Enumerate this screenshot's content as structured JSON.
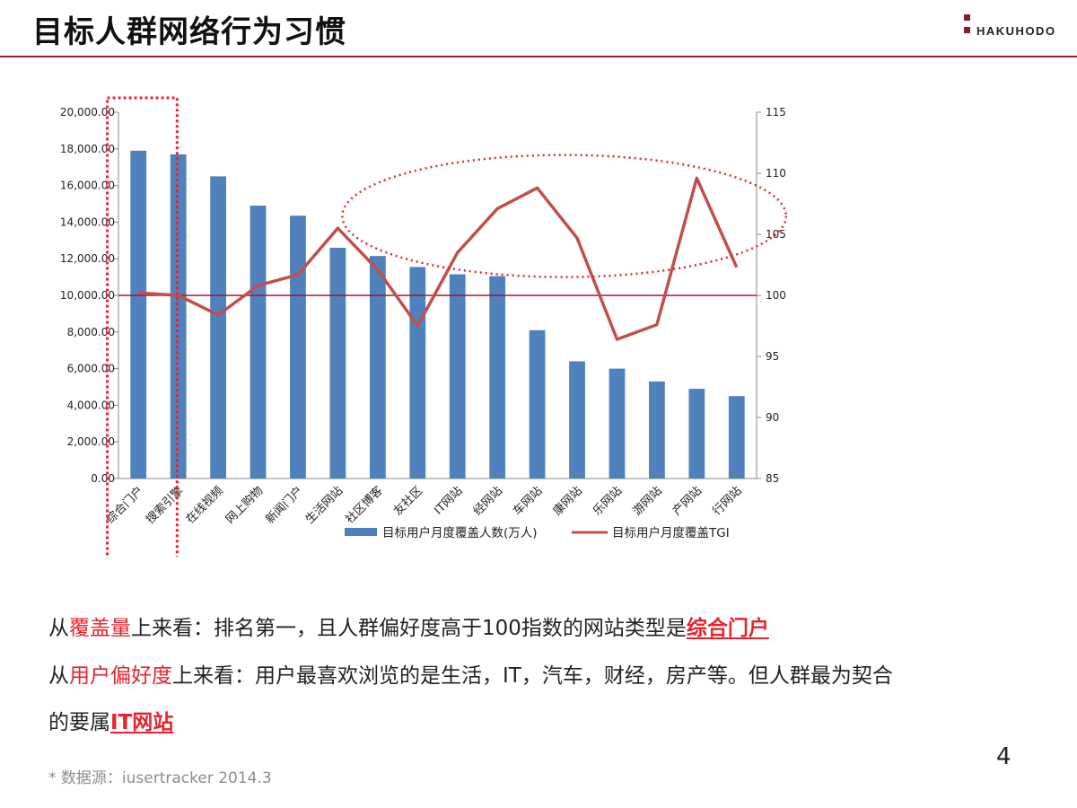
{
  "header": {
    "title": "目标人群网络行为习惯",
    "brand": "HAKUHODO"
  },
  "chart_data": {
    "type": "bar+line",
    "categories": [
      "综合门户",
      "搜索引擎",
      "在线视频",
      "网上购物",
      "新闻门户",
      "生活网站",
      "社区博客",
      "交友社区",
      "IT网站",
      "财经网站",
      "汽车网站",
      "健康网站",
      "娱乐网站",
      "房产网站",
      "房产网站",
      "旅行网站"
    ],
    "category_labels_visible": [
      "综合门户",
      "搜索引擎",
      "在线视频",
      "网上购物",
      "新闻门户",
      "生活网站",
      "社区博客",
      "友社区",
      "IT网站",
      "经网站",
      "车网站",
      "康网站",
      "乐网站",
      "游网站",
      "产网站",
      "行网站"
    ],
    "series": [
      {
        "name": "目标用户月度覆盖人数(万人)",
        "type": "bar",
        "axis": "left",
        "color": "#4f81bd",
        "values": [
          17900,
          17700,
          16500,
          14900,
          14350,
          12600,
          12150,
          11550,
          11150,
          11050,
          8100,
          6400,
          6000,
          5300,
          4900,
          4500
        ]
      },
      {
        "name": "目标用户月度覆盖TGI",
        "type": "line",
        "axis": "right",
        "color": "#c0504d",
        "values": [
          100.2,
          100.0,
          98.4,
          100.8,
          101.7,
          105.5,
          102.1,
          97.5,
          103.5,
          107.1,
          108.8,
          104.7,
          96.4,
          97.6,
          109.6,
          102.3
        ]
      }
    ],
    "y_left": {
      "min": 0,
      "max": 20000,
      "ticks": [
        "0.00",
        "2,000.00",
        "4,000.00",
        "6,000.00",
        "8,000.00",
        "10,000.00",
        "12,000.00",
        "14,000.00",
        "16,000.00",
        "18,000.00",
        "20,000.00"
      ]
    },
    "y_right": {
      "min": 85,
      "max": 115,
      "ticks": [
        "85",
        "90",
        "95",
        "100",
        "105",
        "110",
        "115"
      ]
    },
    "reference_line": {
      "axis": "right",
      "value": 100
    },
    "legend": "bottom"
  },
  "notes": {
    "line1": {
      "a": "从",
      "b": "覆盖量",
      "c": "上来看：排名第一，且人群偏好度高于100指数的网站类型是",
      "d": "综合门户"
    },
    "line2": {
      "a": "从",
      "b": "用户偏好度",
      "c": "上来看：用户最喜欢浏览的是生活，IT，汽车，财经，房产等。但人群最为契合"
    },
    "line3": {
      "a": "的要属",
      "b": "IT网站"
    }
  },
  "source": "* 数据源：iusertracker 2014.3",
  "page_number": "4"
}
